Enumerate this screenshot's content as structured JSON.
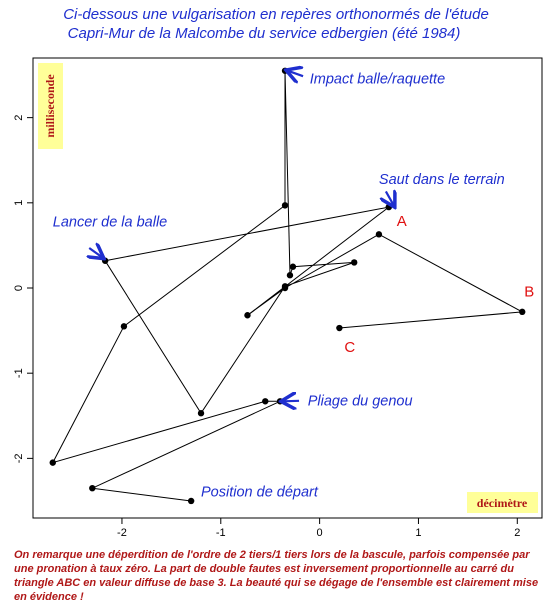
{
  "title_line1": "Ci-dessous une vulgarisation en repères orthonormés de l'étude",
  "title_line2": "Capri-Mur de la Malcombe du service edbergien  (été 1984)",
  "footnote": "On remarque une déperdition de l'ordre de 2 tiers/1 tiers lors de la bascule, parfois compensée par une pronation à taux zéro. La part de double fautes est inversement proportionnelle au carré du triangle ABC en valeur diffuse de base 3. La beauté qui se dégage de l'ensemble  est clairement mise en évidence !",
  "chart_data": {
    "type": "line",
    "xlabel": "décimètre",
    "ylabel": "milliseconde",
    "xlim": [
      -2.9,
      2.25
    ],
    "ylim": [
      -2.7,
      2.7
    ],
    "xticks": [
      -2,
      -1,
      0,
      1,
      2
    ],
    "yticks": [
      -2,
      -1,
      0,
      1,
      2
    ],
    "series": [
      {
        "points": [
          [
            -1.3,
            -2.5
          ],
          [
            -2.3,
            -2.35
          ],
          [
            -0.4,
            -1.33
          ],
          [
            -0.55,
            -1.33
          ],
          [
            -2.7,
            -2.05
          ],
          [
            -1.98,
            -0.45
          ],
          [
            -0.35,
            0.97
          ],
          [
            -0.35,
            2.55
          ],
          [
            -0.3,
            0.15
          ],
          [
            -0.27,
            0.25
          ],
          [
            0.35,
            0.3
          ],
          [
            -0.35,
            0.02
          ],
          [
            -1.2,
            -1.47
          ],
          [
            -2.17,
            0.32
          ],
          [
            0.7,
            0.95
          ],
          [
            -0.73,
            -0.32
          ],
          [
            -0.35,
            0.0
          ],
          [
            0.6,
            0.63
          ],
          [
            2.05,
            -0.28
          ],
          [
            0.2,
            -0.47
          ]
        ]
      }
    ],
    "annotations": [
      {
        "text": "Impact balle/raquette",
        "x": -0.1,
        "y": 2.4,
        "arrow_to": [
          -0.32,
          2.55
        ]
      },
      {
        "text": "Saut dans le terrain",
        "x": 0.6,
        "y": 1.22,
        "arrow_to": [
          0.75,
          0.97
        ]
      },
      {
        "text": "Lancer de la balle",
        "x": -2.7,
        "y": 0.72,
        "arrow_to": [
          -2.2,
          0.36
        ]
      },
      {
        "text": "Pliage du genou",
        "x": -0.12,
        "y": -1.38,
        "arrow_to": [
          -0.37,
          -1.33
        ]
      },
      {
        "text": "Position de départ",
        "x": -1.2,
        "y": -2.45
      }
    ],
    "point_labels": [
      {
        "text": "A",
        "x": 0.78,
        "y": 0.73
      },
      {
        "text": "B",
        "x": 2.07,
        "y": -0.1
      },
      {
        "text": "C",
        "x": 0.25,
        "y": -0.75
      }
    ],
    "grid": false
  }
}
